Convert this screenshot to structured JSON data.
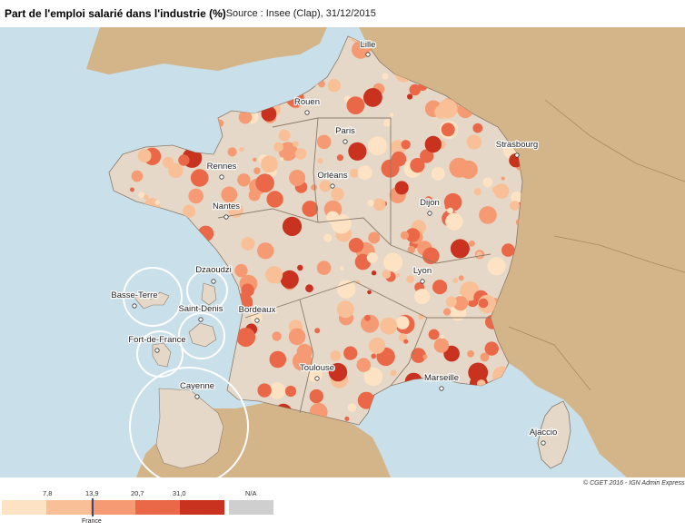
{
  "header": {
    "title": "Part de l'emploi salarié dans l'industrie (%)",
    "subtitle": "- Source : Insee (Clap), 31/12/2015"
  },
  "colors": {
    "sea": "#c9dfe9",
    "land_neighbors": "#d4b489",
    "base": "#e6d8c8",
    "class1": "#fde3c3",
    "class2": "#f9c097",
    "class3": "#f59a72",
    "class4": "#ea6848",
    "class5": "#c9321f",
    "na": "#cfcfcf"
  },
  "cities": [
    {
      "name": "Lille"
    },
    {
      "name": "Rouen"
    },
    {
      "name": "Paris"
    },
    {
      "name": "Strasbourg"
    },
    {
      "name": "Rennes"
    },
    {
      "name": "Orléans"
    },
    {
      "name": "Nantes"
    },
    {
      "name": "Dijon"
    },
    {
      "name": "Lyon"
    },
    {
      "name": "Bordeaux"
    },
    {
      "name": "Toulouse"
    },
    {
      "name": "Marseille"
    },
    {
      "name": "Ajaccio"
    }
  ],
  "overseas": [
    {
      "name": "Basse-Terre"
    },
    {
      "name": "Dzaoudzi"
    },
    {
      "name": "Saint-Denis"
    },
    {
      "name": "Fort-de-France"
    },
    {
      "name": "Cayenne"
    }
  ],
  "legend": {
    "breaks": [
      "7,8",
      "13,9",
      "20,7",
      "31,0"
    ],
    "na_label": "N/A",
    "france_label": "France",
    "france_value": 13.9
  },
  "credit": "© CGET 2016 - IGN Admin Express"
}
